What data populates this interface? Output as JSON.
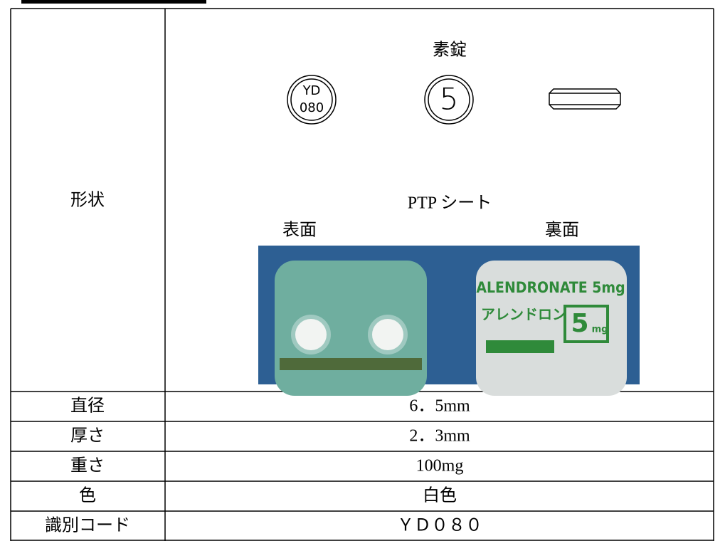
{
  "table": {
    "shape": {
      "label": "形状",
      "tablet_type": "素錠",
      "front_marking": [
        "YD",
        "080"
      ],
      "back_marking": "5",
      "ptp_label": "PTP シート",
      "ptp_front": "表面",
      "ptp_back": "裏面",
      "ptp_back_print": [
        "ALENDRONATE 5mg",
        "アレンドロン",
        "5",
        "mg"
      ]
    },
    "rows": [
      [
        "直径",
        "6．5mm"
      ],
      [
        "厚さ",
        "2．3mm"
      ],
      [
        "重さ",
        "100mg"
      ],
      [
        "色",
        "白色"
      ],
      [
        "識別コード",
        "ＹＤ０８０"
      ]
    ]
  }
}
